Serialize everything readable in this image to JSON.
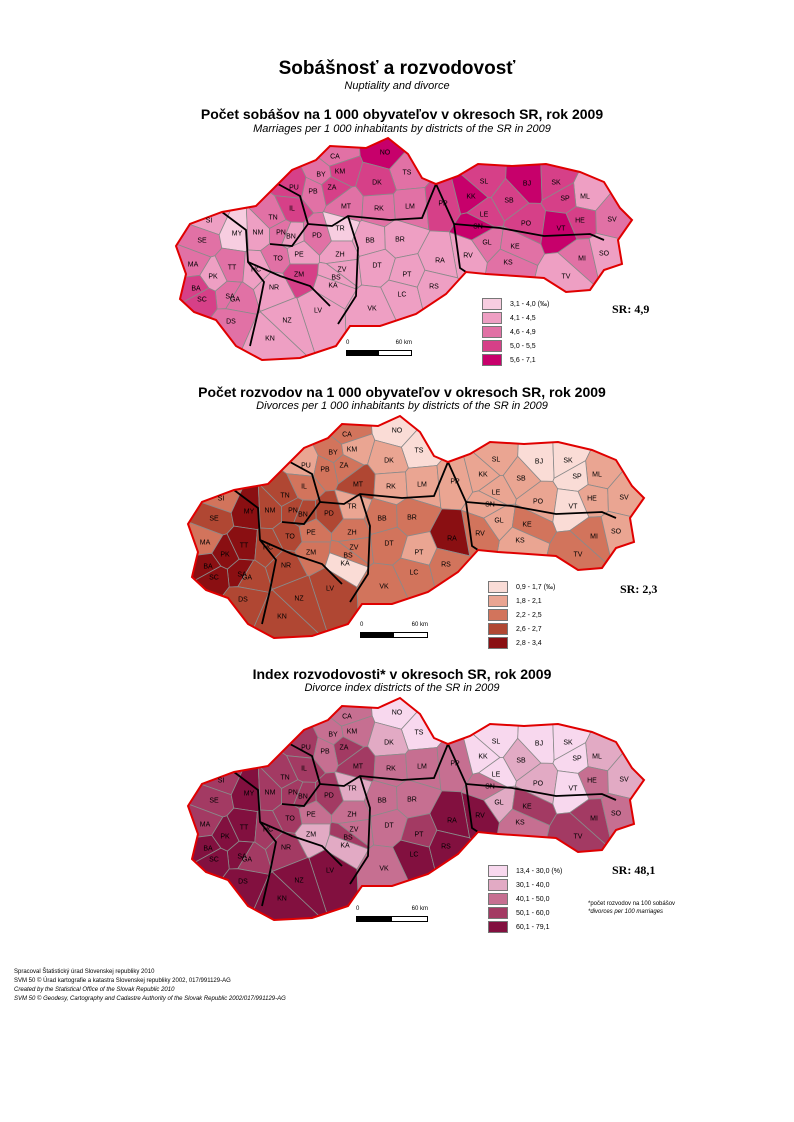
{
  "header": {
    "title": "Sobášnosť a rozvodovosť",
    "subtitle": "Nuptiality and divorce"
  },
  "maps": [
    {
      "title": "Počet sobášov na 1 000 obyvateľov v okresoch SR, rok 2009",
      "subtitle": "Marriages per 1 000 inhabitants by districts of the SR in 2009",
      "sr_value": "SR: 4,9",
      "legend": [
        {
          "label": "3,1 - 4,0 (‰)",
          "color": "#f7cde0"
        },
        {
          "label": "4,1 - 4,5",
          "color": "#ee9fc3"
        },
        {
          "label": "4,6 - 4,9",
          "color": "#e171a5"
        },
        {
          "label": "5,0 - 5,5",
          "color": "#d64088"
        },
        {
          "label": "5,6 - 7,1",
          "color": "#c7006b"
        }
      ],
      "scale": {
        "zero": "0",
        "end": "60 km"
      }
    },
    {
      "title": "Počet rozvodov na 1 000 obyvateľov v okresoch SR, rok 2009",
      "subtitle": "Divorces per 1 000 inhabitants by districts of the SR in 2009",
      "sr_value": "SR: 2,3",
      "legend": [
        {
          "label": "0,9 - 1,7 (‰)",
          "color": "#fadcd6"
        },
        {
          "label": "1,8 - 2,1",
          "color": "#eaa592"
        },
        {
          "label": "2,2 - 2,5",
          "color": "#d2745c"
        },
        {
          "label": "2,6 - 2,7",
          "color": "#b04733"
        },
        {
          "label": "2,8 - 3,4",
          "color": "#8a0f12"
        }
      ],
      "scale": {
        "zero": "0",
        "end": "60 km"
      }
    },
    {
      "title": "Index rozvodovosti* v okresoch SR, rok 2009",
      "subtitle": "Divorce index districts of the SR in 2009",
      "sr_value": "SR: 48,1",
      "legend": [
        {
          "label": "13,4 - 30,0 (%)",
          "color": "#f8d8ee"
        },
        {
          "label": "30,1 - 40,0",
          "color": "#e2aac4"
        },
        {
          "label": "40,1 - 50,0",
          "color": "#c66f91"
        },
        {
          "label": "50,1 - 60,0",
          "color": "#a33a63"
        },
        {
          "label": "60,1 - 79,1",
          "color": "#82103f"
        }
      ],
      "scale": {
        "zero": "0",
        "end": "60 km"
      },
      "note_sk": "*počet rozvodov na 100 sobášov",
      "note_en": "*divorces per 100 marriages"
    }
  ],
  "districts": [
    {
      "code": "CA",
      "ranks": [
        3,
        3,
        3
      ]
    },
    {
      "code": "NO",
      "ranks": [
        5,
        1,
        1
      ]
    },
    {
      "code": "TS",
      "ranks": [
        3,
        1,
        1
      ]
    },
    {
      "code": "KM",
      "ranks": [
        4,
        2,
        3
      ]
    },
    {
      "code": "BY",
      "ranks": [
        3,
        3,
        3
      ]
    },
    {
      "code": "ZA",
      "ranks": [
        4,
        3,
        4
      ]
    },
    {
      "code": "DK",
      "ranks": [
        4,
        2,
        2
      ]
    },
    {
      "code": "PU",
      "ranks": [
        4,
        2,
        4
      ]
    },
    {
      "code": "PB",
      "ranks": [
        3,
        3,
        3
      ]
    },
    {
      "code": "MT",
      "ranks": [
        3,
        4,
        4
      ]
    },
    {
      "code": "RK",
      "ranks": [
        3,
        2,
        3
      ]
    },
    {
      "code": "LM",
      "ranks": [
        3,
        2,
        3
      ]
    },
    {
      "code": "PP",
      "ranks": [
        4,
        2,
        3
      ]
    },
    {
      "code": "SL",
      "ranks": [
        4,
        2,
        1
      ]
    },
    {
      "code": "KK",
      "ranks": [
        5,
        2,
        1
      ]
    },
    {
      "code": "BJ",
      "ranks": [
        5,
        1,
        1
      ]
    },
    {
      "code": "SK",
      "ranks": [
        4,
        1,
        1
      ]
    },
    {
      "code": "ML",
      "ranks": [
        2,
        2,
        2
      ]
    },
    {
      "code": "SB",
      "ranks": [
        4,
        2,
        2
      ]
    },
    {
      "code": "LE",
      "ranks": [
        4,
        2,
        1
      ]
    },
    {
      "code": "SP",
      "ranks": [
        4,
        1,
        1
      ]
    },
    {
      "code": "HE",
      "ranks": [
        4,
        2,
        3
      ]
    },
    {
      "code": "SV",
      "ranks": [
        3,
        2,
        2
      ]
    },
    {
      "code": "PO",
      "ranks": [
        4,
        2,
        2
      ]
    },
    {
      "code": "SN",
      "ranks": [
        5,
        2,
        3
      ]
    },
    {
      "code": "VT",
      "ranks": [
        5,
        1,
        1
      ]
    },
    {
      "code": "GL",
      "ranks": [
        3,
        2,
        2
      ]
    },
    {
      "code": "KE",
      "ranks": [
        3,
        3,
        4
      ]
    },
    {
      "code": "MI",
      "ranks": [
        3,
        3,
        4
      ]
    },
    {
      "code": "SO",
      "ranks": [
        2,
        2,
        3
      ]
    },
    {
      "code": "KS",
      "ranks": [
        3,
        2,
        3
      ]
    },
    {
      "code": "RV",
      "ranks": [
        2,
        3,
        5
      ]
    },
    {
      "code": "TV",
      "ranks": [
        2,
        3,
        4
      ]
    },
    {
      "code": "SI",
      "ranks": [
        2,
        3,
        4
      ]
    },
    {
      "code": "SE",
      "ranks": [
        3,
        4,
        4
      ]
    },
    {
      "code": "MY",
      "ranks": [
        1,
        5,
        5
      ]
    },
    {
      "code": "NM",
      "ranks": [
        2,
        4,
        4
      ]
    },
    {
      "code": "IL",
      "ranks": [
        4,
        3,
        4
      ]
    },
    {
      "code": "TN",
      "ranks": [
        3,
        4,
        4
      ]
    },
    {
      "code": "PN",
      "ranks": [
        3,
        4,
        4
      ]
    },
    {
      "code": "BN",
      "ranks": [
        2,
        4,
        4
      ]
    },
    {
      "code": "PD",
      "ranks": [
        3,
        4,
        4
      ]
    },
    {
      "code": "PE",
      "ranks": [
        2,
        3,
        3
      ]
    },
    {
      "code": "TR",
      "ranks": [
        1,
        2,
        2
      ]
    },
    {
      "code": "MA",
      "ranks": [
        3,
        3,
        4
      ]
    },
    {
      "code": "PK",
      "ranks": [
        2,
        5,
        5
      ]
    },
    {
      "code": "TT",
      "ranks": [
        3,
        5,
        5
      ]
    },
    {
      "code": "HC",
      "ranks": [
        2,
        4,
        4
      ]
    },
    {
      "code": "TO",
      "ranks": [
        3,
        4,
        4
      ]
    },
    {
      "code": "ZM",
      "ranks": [
        4,
        3,
        2
      ]
    },
    {
      "code": "ZH",
      "ranks": [
        2,
        3,
        3
      ]
    },
    {
      "code": "BB",
      "ranks": [
        2,
        3,
        3
      ]
    },
    {
      "code": "BR",
      "ranks": [
        2,
        3,
        3
      ]
    },
    {
      "code": "ZV",
      "ranks": [
        2,
        3,
        3
      ]
    },
    {
      "code": "DT",
      "ranks": [
        2,
        3,
        3
      ]
    },
    {
      "code": "RA",
      "ranks": [
        2,
        5,
        5
      ]
    },
    {
      "code": "PT",
      "ranks": [
        2,
        2,
        4
      ]
    },
    {
      "code": "BS",
      "ranks": [
        2,
        3,
        4
      ]
    },
    {
      "code": "KA",
      "ranks": [
        2,
        1,
        2
      ]
    },
    {
      "code": "LC",
      "ranks": [
        2,
        3,
        5
      ]
    },
    {
      "code": "RS",
      "ranks": [
        2,
        3,
        5
      ]
    },
    {
      "code": "VK",
      "ranks": [
        2,
        3,
        3
      ]
    },
    {
      "code": "LV",
      "ranks": [
        2,
        4,
        5
      ]
    },
    {
      "code": "NR",
      "ranks": [
        2,
        4,
        4
      ]
    },
    {
      "code": "SA",
      "ranks": [
        3,
        5,
        5
      ]
    },
    {
      "code": "GA",
      "ranks": [
        3,
        4,
        4
      ]
    },
    {
      "code": "BA",
      "ranks": [
        4,
        5,
        5
      ]
    },
    {
      "code": "SC",
      "ranks": [
        4,
        5,
        5
      ]
    },
    {
      "code": "DS",
      "ranks": [
        3,
        4,
        5
      ]
    },
    {
      "code": "NZ",
      "ranks": [
        2,
        4,
        5
      ]
    },
    {
      "code": "KN",
      "ranks": [
        2,
        4,
        5
      ]
    }
  ],
  "footer": {
    "line1": "Spracoval Štatistický úrad Slovenskej republiky 2010",
    "line2": "SVM 50 © Úrad kartografie a katastra Slovenskej republiky 2002, 017/991129-AG",
    "line3": "Created by the Statistical Office of the Slovak Republic 2010",
    "line4": "SVM 50 © Geodesy, Cartography and Cadastre Authority of the Slovak Republic 2002/017/991129-AG"
  }
}
